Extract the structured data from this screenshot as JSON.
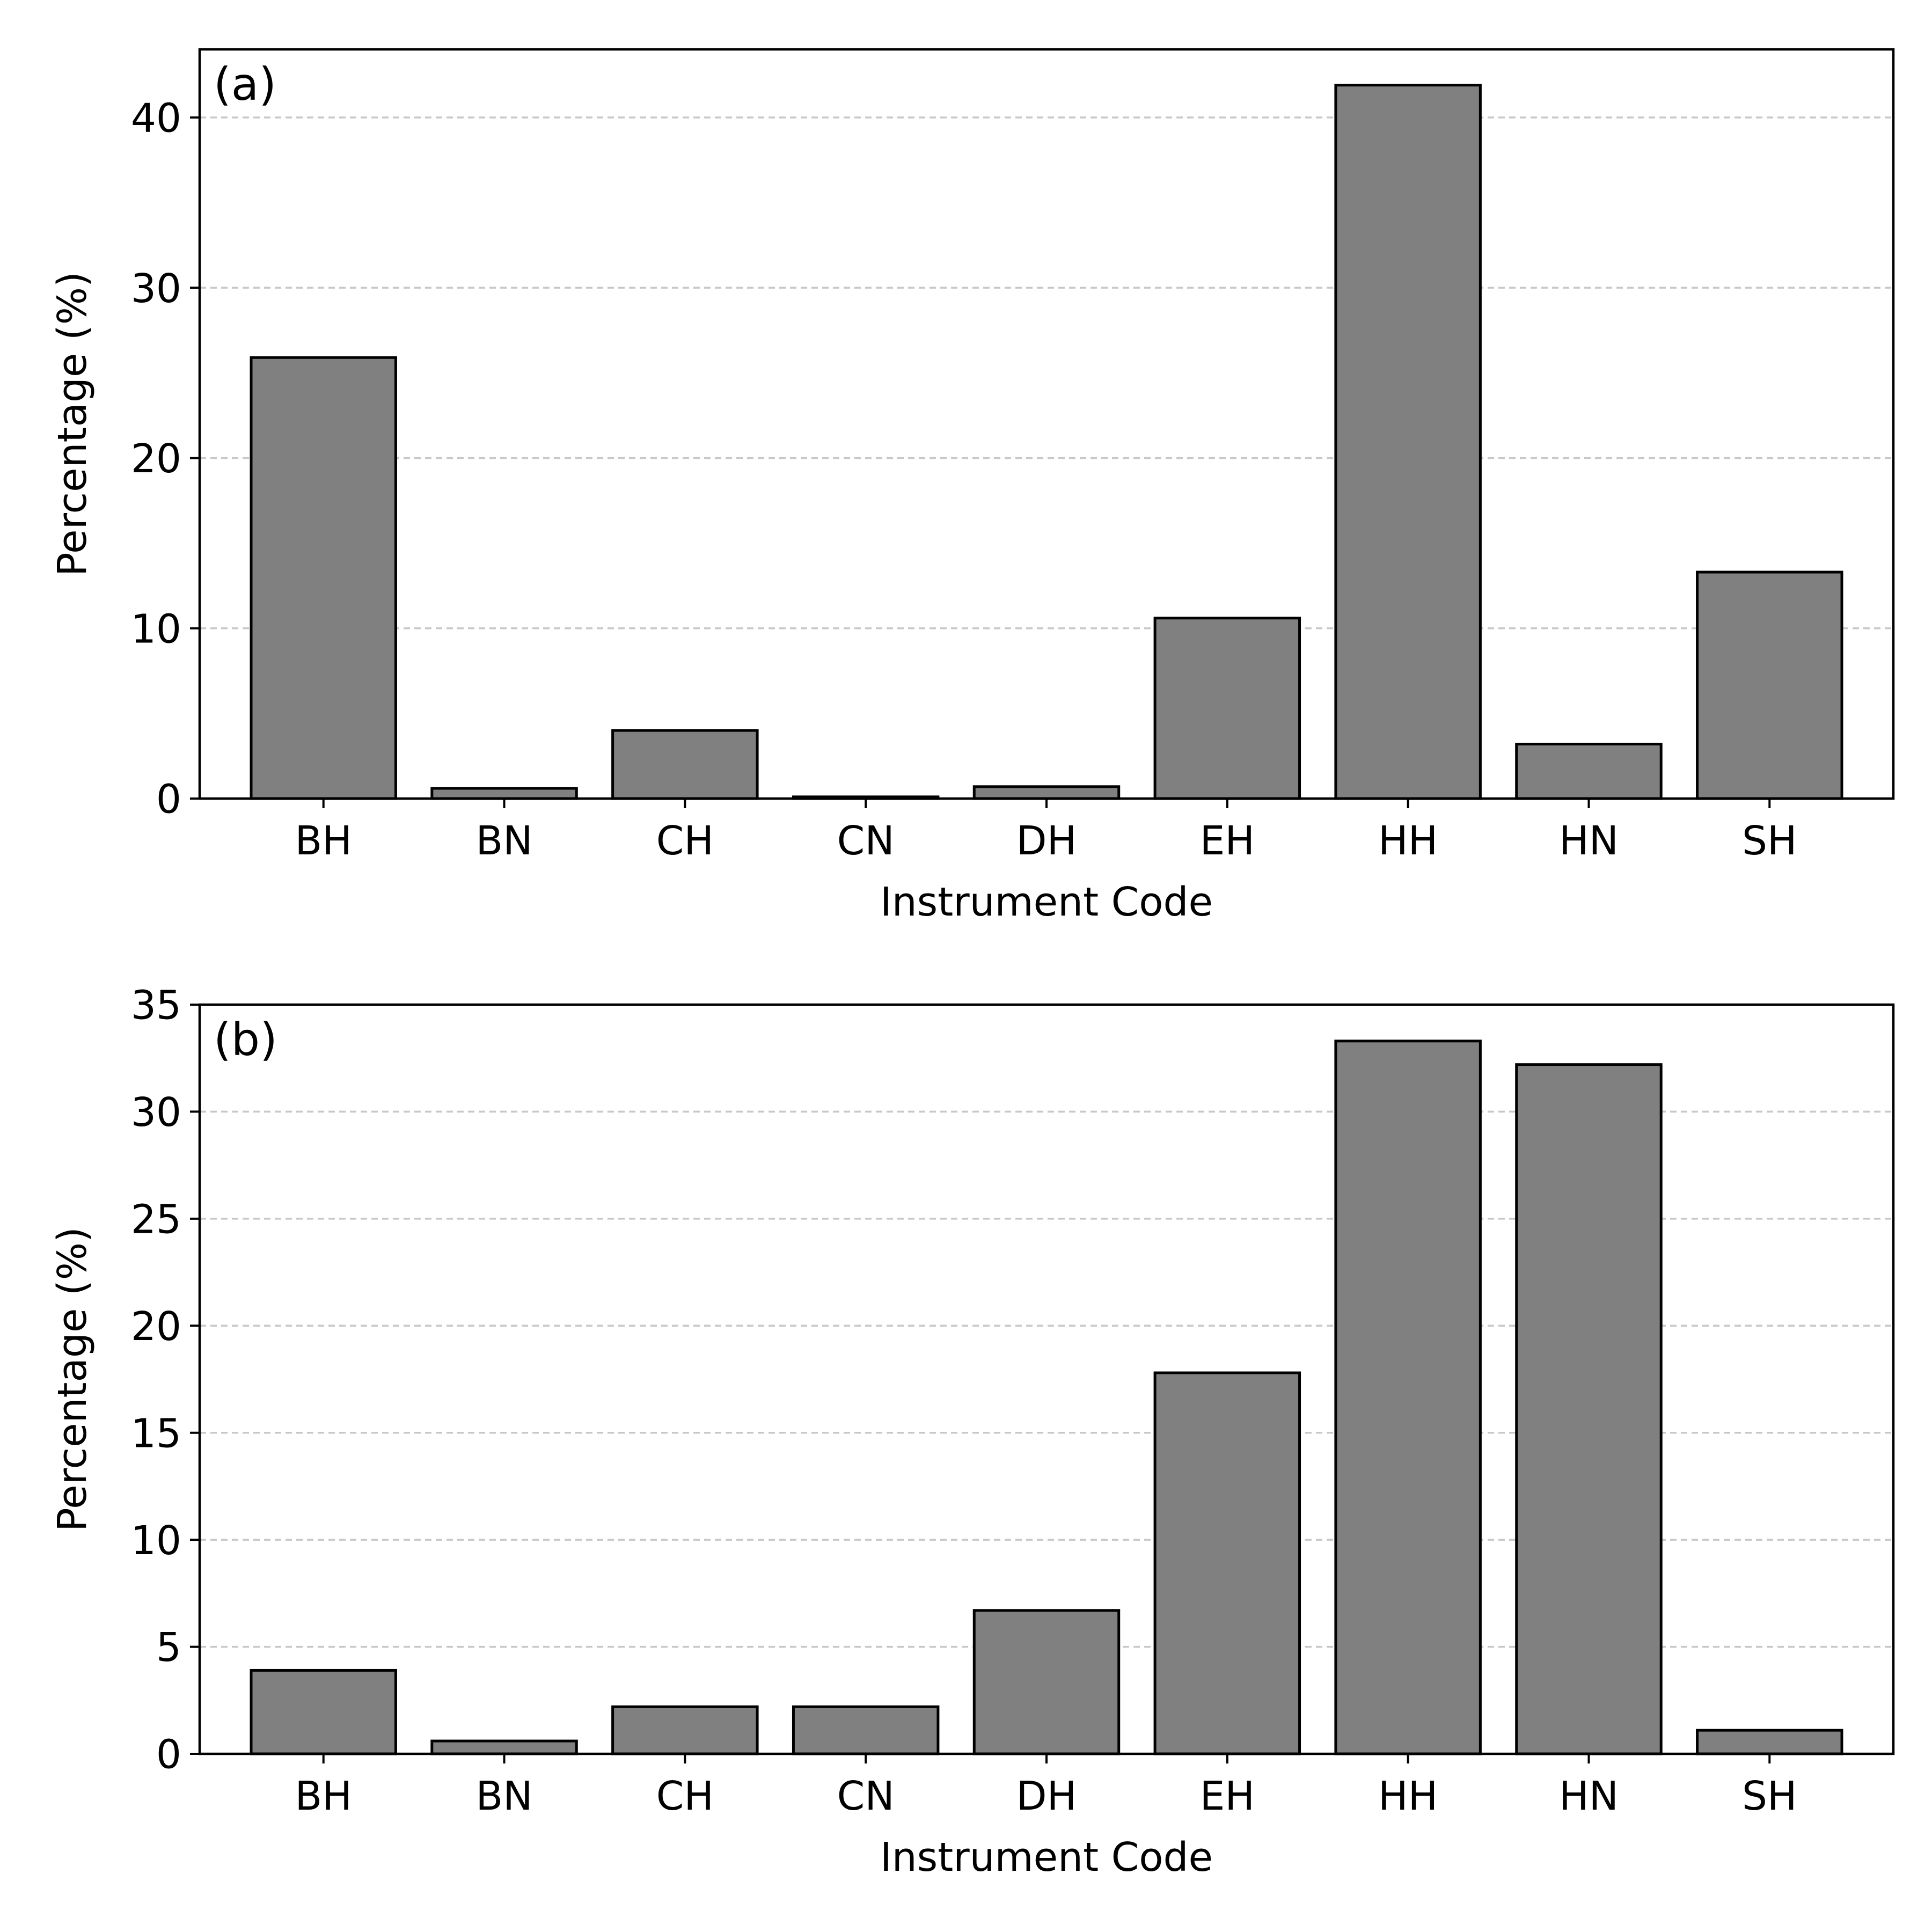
{
  "chart_data": [
    {
      "type": "bar",
      "panel_label": "(a)",
      "categories": [
        "BH",
        "BN",
        "CH",
        "CN",
        "DH",
        "EH",
        "HH",
        "HN",
        "SH"
      ],
      "values": [
        25.9,
        0.6,
        4.0,
        0.1,
        0.7,
        10.6,
        41.9,
        3.2,
        13.3
      ],
      "xlabel": "Instrument Code",
      "ylabel": "Percentage (%)",
      "ylim": [
        0,
        44
      ],
      "yticks": [
        0,
        10,
        20,
        30,
        40
      ],
      "grid": "y-dashed",
      "bar_color": "#808080",
      "edge_color": "#000000"
    },
    {
      "type": "bar",
      "panel_label": "(b)",
      "categories": [
        "BH",
        "BN",
        "CH",
        "CN",
        "DH",
        "EH",
        "HH",
        "HN",
        "SH"
      ],
      "values": [
        3.9,
        0.6,
        2.2,
        2.2,
        6.7,
        17.8,
        33.3,
        32.2,
        1.1
      ],
      "xlabel": "Instrument Code",
      "ylabel": "Percentage (%)",
      "ylim": [
        0,
        35
      ],
      "yticks": [
        0,
        5,
        10,
        15,
        20,
        25,
        30,
        35
      ],
      "grid": "y-dashed",
      "bar_color": "#808080",
      "edge_color": "#000000"
    }
  ]
}
